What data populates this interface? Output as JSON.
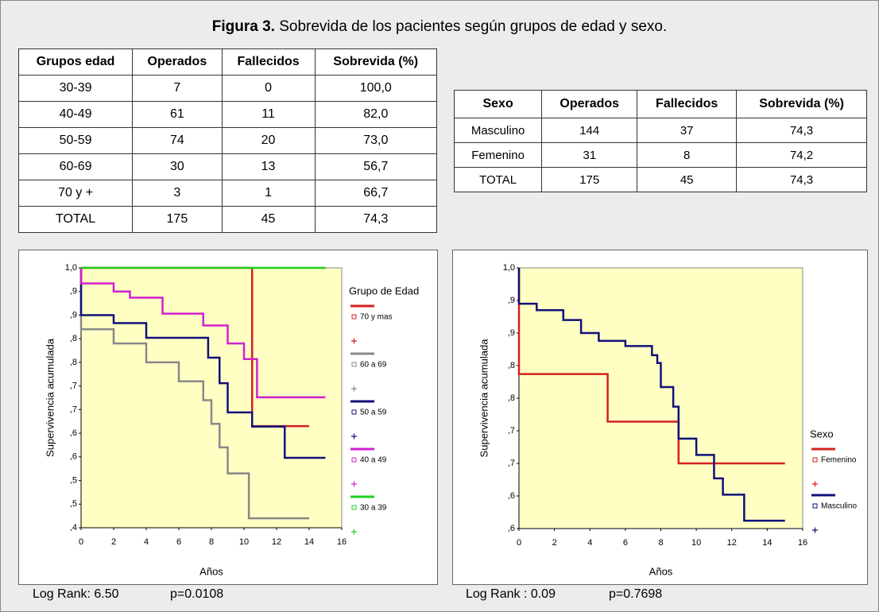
{
  "title": {
    "bold": "Figura 3.",
    "text": " Sobrevida de los pacientes según grupos de edad y sexo."
  },
  "table_age": {
    "header": [
      "Grupos edad",
      "Operados",
      "Fallecidos",
      "Sobrevida (%)"
    ],
    "rows": [
      [
        "30-39",
        "7",
        "0",
        "100,0"
      ],
      [
        "40-49",
        "61",
        "11",
        "82,0"
      ],
      [
        "50-59",
        "74",
        "20",
        "73,0"
      ],
      [
        "60-69",
        "30",
        "13",
        "56,7"
      ],
      [
        "70 y +",
        "3",
        "1",
        "66,7"
      ],
      [
        "TOTAL",
        "175",
        "45",
        "74,3"
      ]
    ]
  },
  "table_sex": {
    "header": [
      "Sexo",
      "Operados",
      "Fallecidos",
      "Sobrevida (%)"
    ],
    "rows": [
      [
        "Masculino",
        "144",
        "37",
        "74,3"
      ],
      [
        "Femenino",
        "31",
        "8",
        "74,2"
      ],
      [
        "TOTAL",
        "175",
        "45",
        "74,3"
      ]
    ]
  },
  "chart_data": [
    {
      "type": "line",
      "x_label": "Años",
      "y_label": "Supervivencia acumulada",
      "legend_title": "Grupo de Edad",
      "xlim": [
        0,
        16
      ],
      "xticks": [
        0,
        2,
        4,
        6,
        8,
        10,
        12,
        14,
        16
      ],
      "ylim": [
        0.45,
        1.0
      ],
      "yticks": [
        {
          "value": 1.0,
          "label": "1,0"
        },
        {
          "value": 0.95,
          "label": ",9"
        },
        {
          "value": 0.9,
          "label": ",9"
        },
        {
          "value": 0.85,
          "label": ",8"
        },
        {
          "value": 0.8,
          "label": ",8"
        },
        {
          "value": 0.75,
          "label": ",7"
        },
        {
          "value": 0.7,
          "label": ",7"
        },
        {
          "value": 0.65,
          "label": ",6"
        },
        {
          "value": 0.6,
          "label": ",6"
        },
        {
          "value": 0.55,
          "label": ",5"
        },
        {
          "value": 0.5,
          "label": ",5"
        },
        {
          "value": 0.45,
          "label": ",4"
        }
      ],
      "series": [
        {
          "name": "70 y mas",
          "color": "#d42020",
          "x": [
            0,
            10.5,
            14
          ],
          "values": [
            1.0,
            0.665,
            0.665
          ]
        },
        {
          "name": "60 a 69",
          "color": "#888888",
          "x": [
            0,
            2,
            4,
            6,
            7.5,
            8,
            8.5,
            9,
            10.3,
            14
          ],
          "values": [
            0.87,
            0.84,
            0.8,
            0.76,
            0.72,
            0.67,
            0.62,
            0.565,
            0.47,
            0.47
          ]
        },
        {
          "name": "50 a 59",
          "color": "#10107a",
          "x": [
            0,
            2,
            4,
            7.8,
            8.5,
            9,
            10.5,
            12.5,
            15
          ],
          "values": [
            0.9,
            0.883,
            0.852,
            0.81,
            0.756,
            0.694,
            0.664,
            0.598,
            0.598
          ]
        },
        {
          "name": "40 a 49",
          "color": "#d020d0",
          "x": [
            0,
            2,
            3,
            5,
            7.5,
            9,
            10,
            10.8,
            15
          ],
          "values": [
            0.967,
            0.95,
            0.937,
            0.903,
            0.878,
            0.84,
            0.807,
            0.726,
            0.726
          ]
        },
        {
          "name": "30 a 39",
          "color": "#20d020",
          "x": [
            0,
            15
          ],
          "values": [
            1.0,
            1.0
          ]
        }
      ],
      "stats": {
        "log_rank": "Log Rank: 6.50",
        "p": "p=0.0108"
      }
    },
    {
      "type": "line",
      "x_label": "Años",
      "y_label": "Supervivencia acumulada",
      "legend_title": "Sexo",
      "xlim": [
        0,
        16
      ],
      "xticks": [
        0,
        2,
        4,
        6,
        8,
        10,
        12,
        14,
        16
      ],
      "ylim": [
        0.6,
        1.0
      ],
      "yticks": [
        {
          "value": 1.0,
          "label": "1,0"
        },
        {
          "value": 0.95,
          "label": ",9"
        },
        {
          "value": 0.9,
          "label": ",9"
        },
        {
          "value": 0.85,
          "label": ",8"
        },
        {
          "value": 0.8,
          "label": ",8"
        },
        {
          "value": 0.75,
          "label": ",7"
        },
        {
          "value": 0.7,
          "label": ",7"
        },
        {
          "value": 0.65,
          "label": ",6"
        },
        {
          "value": 0.6,
          "label": ",6"
        }
      ],
      "series": [
        {
          "name": "Femenino",
          "color": "#d42020",
          "x": [
            0,
            5,
            9,
            15
          ],
          "values": [
            0.837,
            0.764,
            0.7,
            0.7
          ]
        },
        {
          "name": "Masculino",
          "color": "#10107a",
          "x": [
            0,
            1,
            2.5,
            3.5,
            4.5,
            6,
            7.5,
            7.8,
            8,
            8.7,
            9,
            10,
            11,
            11.5,
            12.7,
            15
          ],
          "values": [
            0.945,
            0.935,
            0.92,
            0.9,
            0.888,
            0.88,
            0.866,
            0.854,
            0.817,
            0.787,
            0.738,
            0.713,
            0.677,
            0.652,
            0.612,
            0.612
          ]
        }
      ],
      "stats": {
        "log_rank": "Log Rank : 0.09",
        "p": "p=0.7698"
      }
    }
  ]
}
